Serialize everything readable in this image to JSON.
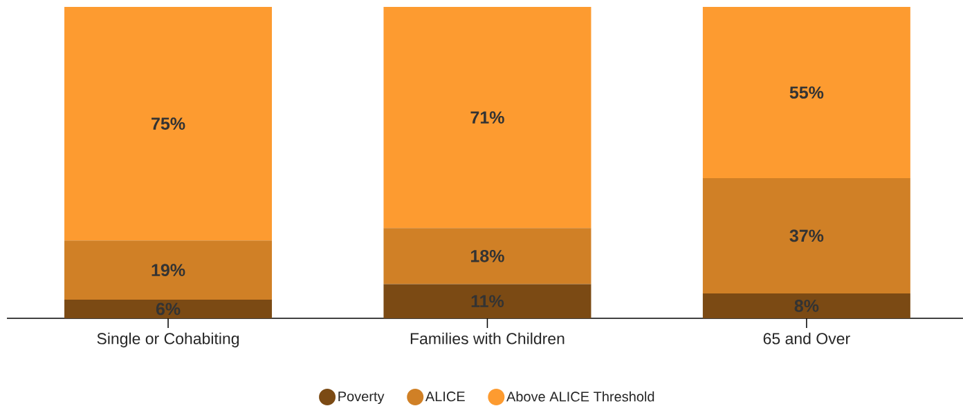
{
  "chart_data": {
    "type": "bar",
    "stacked": true,
    "categories": [
      "Single or Cohabiting",
      "Families with Children",
      "65 and Over"
    ],
    "series": [
      {
        "name": "Poverty",
        "color": "#7b4a14",
        "values": [
          6,
          11,
          8
        ],
        "value_labels": [
          "6%",
          "11%",
          "8%"
        ]
      },
      {
        "name": "ALICE",
        "color": "#d08026",
        "values": [
          19,
          18,
          37
        ],
        "value_labels": [
          "19%",
          "18%",
          "37%"
        ]
      },
      {
        "name": "Above ALICE Threshold",
        "color": "#fd9b30",
        "values": [
          75,
          71,
          55
        ],
        "value_labels": [
          "75%",
          "71%",
          "55%"
        ]
      }
    ],
    "legend": "bottom"
  }
}
